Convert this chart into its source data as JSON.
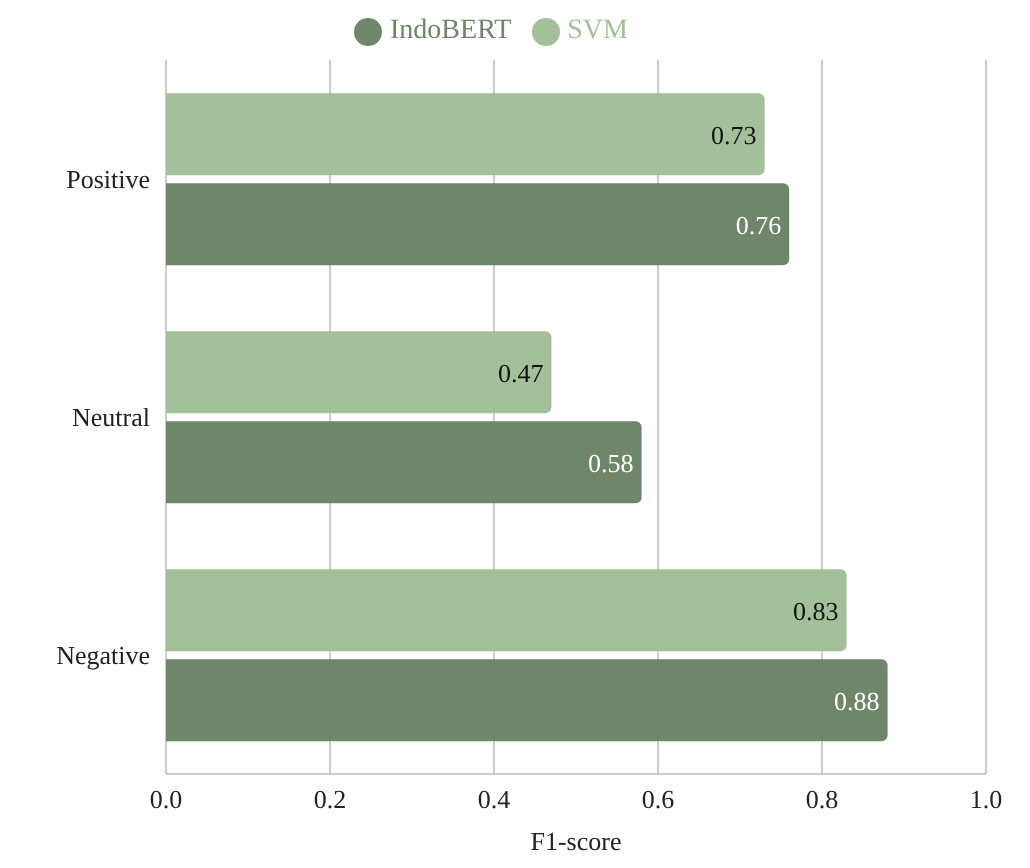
{
  "chart_data": {
    "type": "bar",
    "orientation": "horizontal",
    "categories": [
      "Positive",
      "Neutral",
      "Negative"
    ],
    "xlabel": "F1-score",
    "series": [
      {
        "name": "SVM",
        "color": "#a3c09a",
        "values": [
          0.73,
          0.47,
          0.83
        ]
      },
      {
        "name": "IndoBERT",
        "color": "#6f866b",
        "values": [
          0.76,
          0.58,
          0.88
        ]
      }
    ],
    "xlim": [
      0,
      1.0
    ],
    "xticks": [
      {
        "value": 0,
        "label": "0.0"
      },
      {
        "value": 0.2,
        "label": "0.2"
      },
      {
        "value": 0.4,
        "label": "0.4"
      },
      {
        "value": 0.6,
        "label": "0.6"
      },
      {
        "value": 0.8,
        "label": "0.8"
      },
      {
        "value": 1.0,
        "label": "1.0"
      }
    ],
    "grid": "x",
    "legend": "top",
    "data_labels": true
  }
}
